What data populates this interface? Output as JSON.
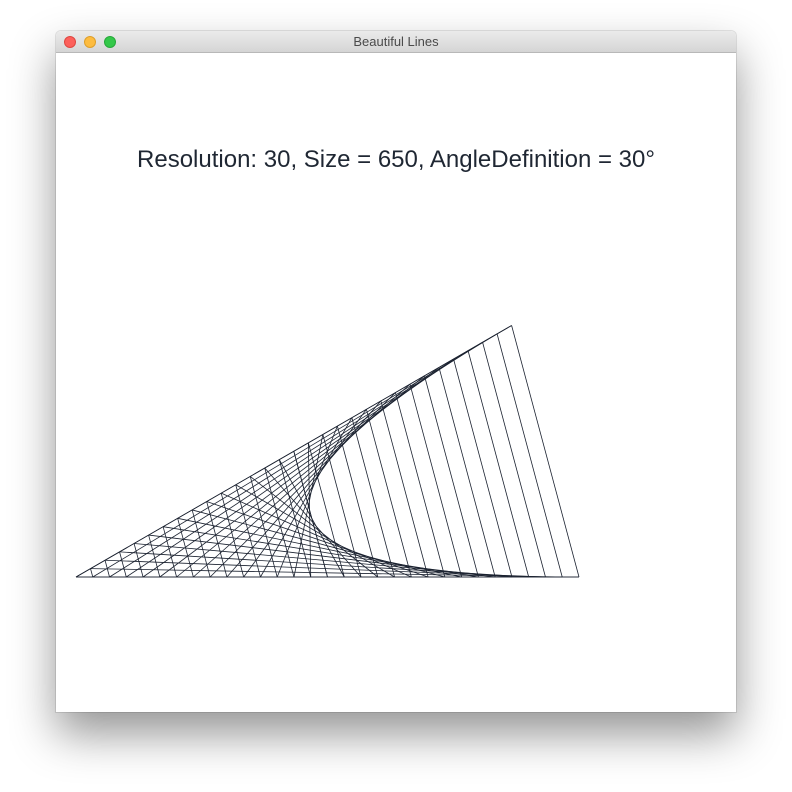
{
  "window": {
    "title": "Beautiful Lines",
    "controls": {
      "close": "close-button",
      "minimize": "minimize-button",
      "zoom": "zoom-button"
    }
  },
  "caption": "Resolution: 30, Size = 650, AngleDefinition = 30°",
  "drawing": {
    "resolution": 30,
    "size": 650,
    "angle_degrees": 30,
    "line_color": "#1b2230"
  }
}
